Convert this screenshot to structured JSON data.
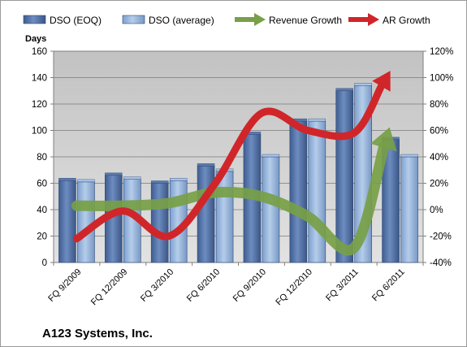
{
  "chart_data": {
    "type": "bar",
    "title": "A123 Systems, Inc.",
    "y_left_title": "Days",
    "categories": [
      "FQ 9/2009",
      "FQ 12/2009",
      "FQ 3/2010",
      "FQ 6/2010",
      "FQ 9/2010",
      "FQ 12/2010",
      "FQ 3/2011",
      "FQ 6/2011"
    ],
    "ylim_left": [
      0,
      160
    ],
    "yticks_left": [
      0,
      20,
      40,
      60,
      80,
      100,
      120,
      140,
      160
    ],
    "ylim_right": [
      -40,
      120
    ],
    "yticks_right": [
      -40,
      -20,
      0,
      20,
      40,
      60,
      80,
      100,
      120
    ],
    "right_axis_format": "percent",
    "grid": true,
    "legend": "top",
    "bar_series": [
      {
        "name": "DSO (EOQ)",
        "axis": "left",
        "color": "#4f6fa3",
        "values": [
          62,
          66,
          60,
          73,
          97,
          107,
          130,
          93
        ]
      },
      {
        "name": "DSO (average)",
        "axis": "left",
        "color": "#8fb2dc",
        "values": [
          61,
          63,
          62,
          69,
          80,
          107,
          134,
          80
        ]
      }
    ],
    "line_series": [
      {
        "name": "Revenue Growth",
        "axis": "right",
        "unit": "%",
        "color": "#77a047",
        "values": [
          3,
          3,
          5,
          13,
          10,
          -5,
          -29,
          60
        ]
      },
      {
        "name": "AR Growth",
        "axis": "right",
        "unit": "%",
        "color": "#d0262a",
        "values": [
          -22,
          -1,
          -20,
          20,
          73,
          60,
          58,
          103
        ]
      }
    ]
  }
}
